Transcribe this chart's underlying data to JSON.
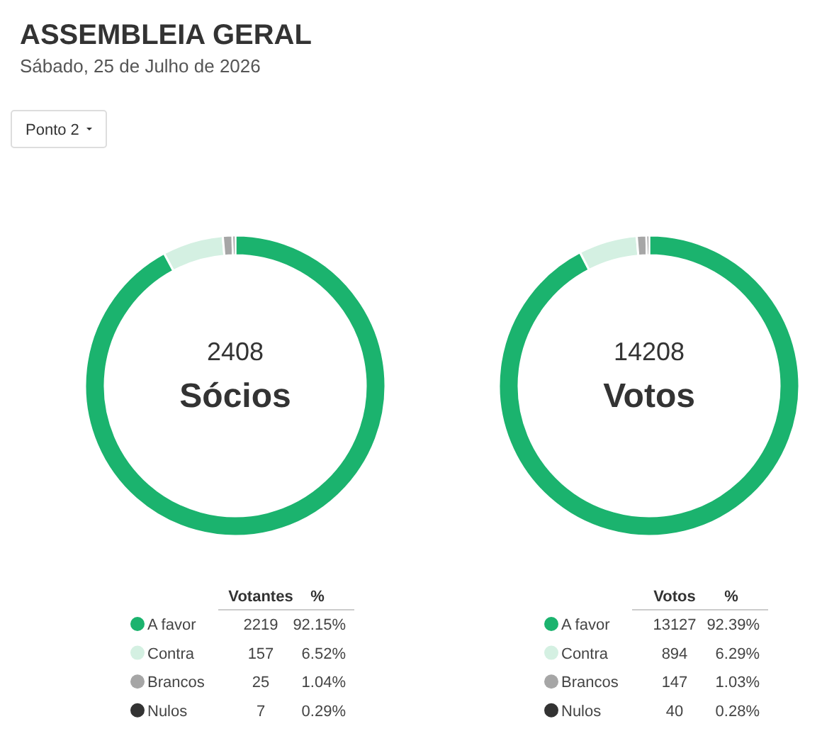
{
  "chart_data": [
    {
      "type": "donut",
      "title": "ASSEMBLEIA GERAL",
      "subtitle": "Sábado, 25 de Julho de 2026",
      "legend_title": "Votantes",
      "categories": [
        "A favor",
        "Contra",
        "Brancos",
        "Nulos"
      ],
      "values": [
        2219,
        157,
        25,
        7
      ],
      "colors": [
        "#1bb36e",
        "#d4f0e2",
        "#a6a6a6",
        "#333333"
      ],
      "data_labels": true,
      "legend": "bottom",
      "annotations": [
        "2408",
        "Sócios",
        "%",
        "92.15%",
        "6.52%",
        "1.04%",
        "0.29%",
        "Ponto 2"
      ]
    },
    {
      "type": "donut",
      "legend_title": "Votos",
      "categories": [
        "A favor",
        "Contra",
        "Brancos",
        "Nulos"
      ],
      "values": [
        13127,
        894,
        147,
        40
      ],
      "colors": [
        "#1bb36e",
        "#d4f0e2",
        "#a6a6a6",
        "#333333"
      ],
      "data_labels": true,
      "legend": "bottom",
      "annotations": [
        "14208",
        "Votos",
        "%",
        "92.39%",
        "6.29%",
        "1.03%",
        "0.28%"
      ]
    }
  ]
}
